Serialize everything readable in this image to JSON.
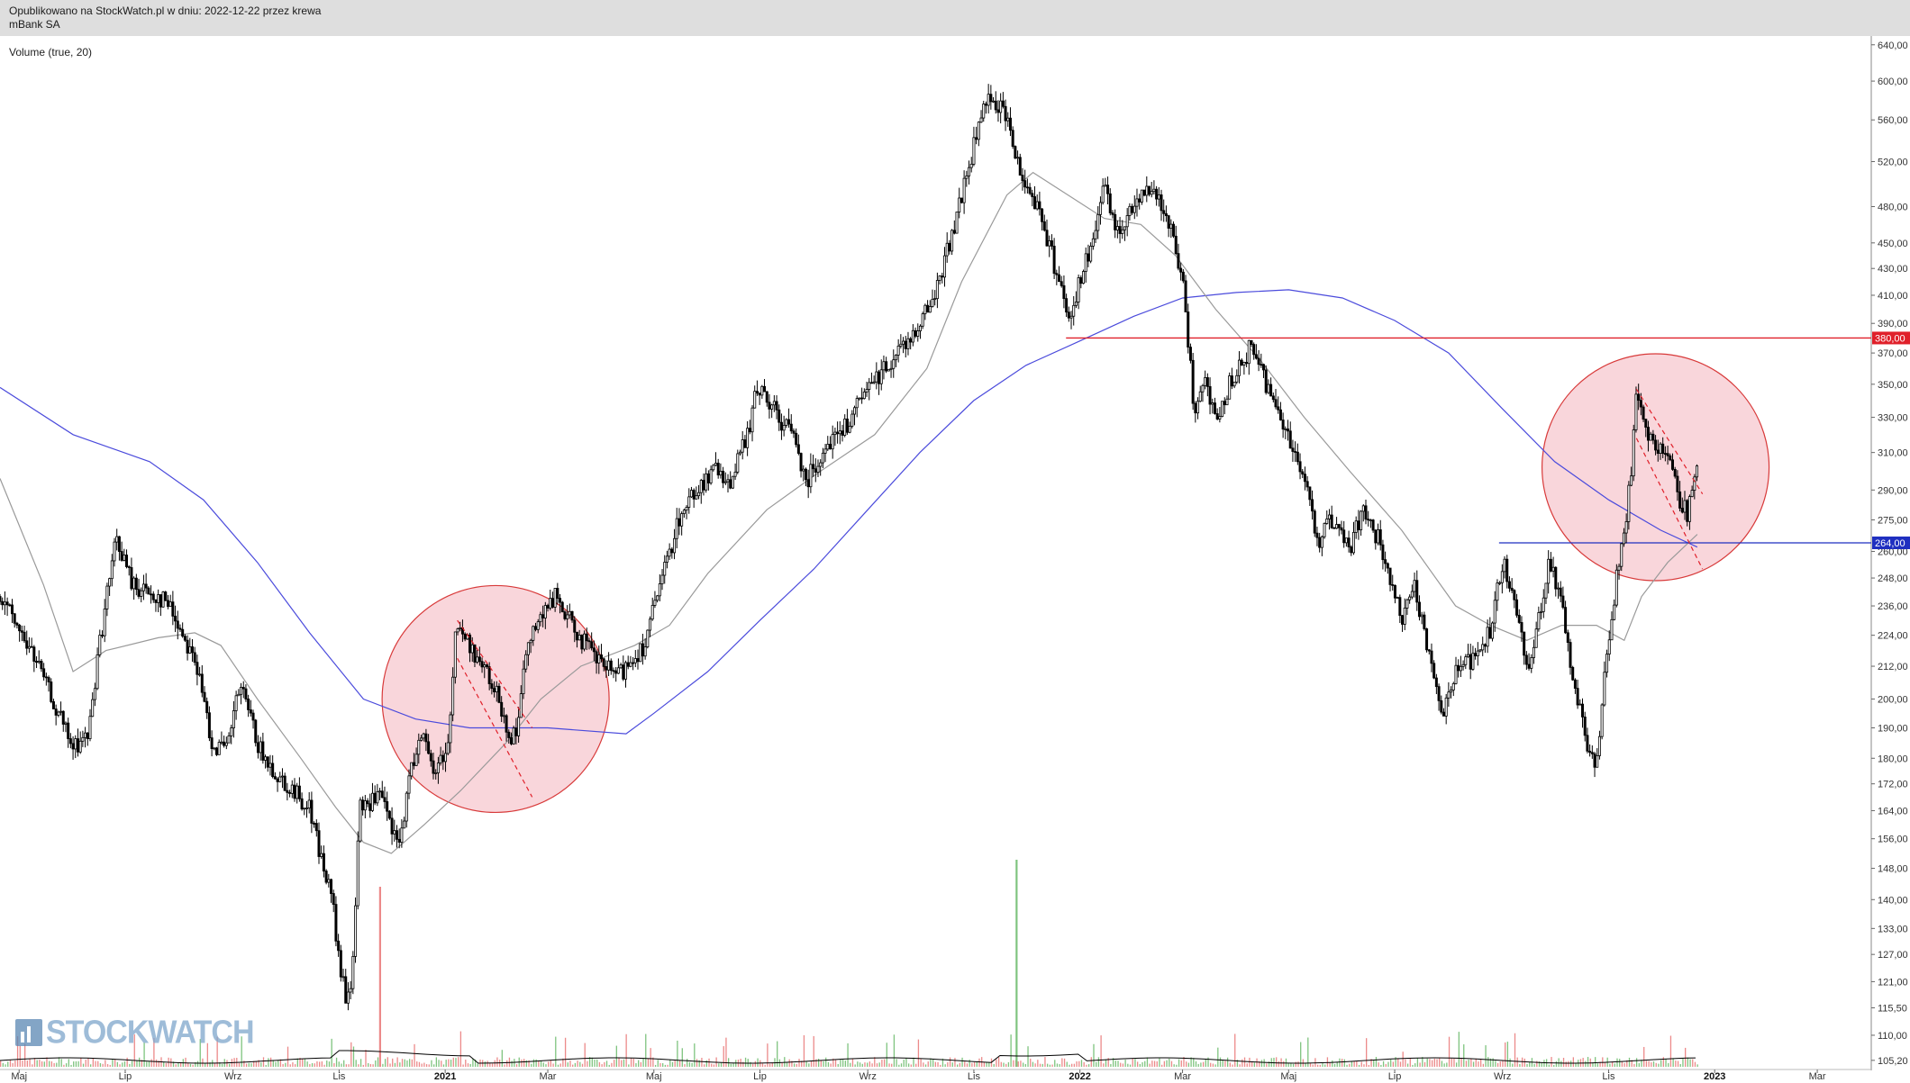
{
  "header": {
    "line1": "Opublikowano na StockWatch.pl w dniu: 2022-12-22 przez krewa",
    "line2": "mBank SA"
  },
  "indicator_label": "Volume (true, 20)",
  "logo_text": "STOCKWATCH",
  "colors": {
    "header_bg": "#dedede",
    "candle": "#000000",
    "ma_short": "#9a9a9a",
    "ma_long": "#4b4bdc",
    "resistance": "#e0202a",
    "support": "#1f2fc0",
    "circle_fill": "#f7c4cc",
    "circle_stroke": "#d83a3a",
    "volume_up": "#7fc47f",
    "volume_down": "#ec8a8a"
  },
  "chart_data": {
    "type": "candlestick",
    "title": "mBank SA",
    "x_range": [
      "2020-04-20",
      "2023-03-31"
    ],
    "y_scale": "log",
    "y_range": [
      104,
      648
    ],
    "y_ticks": [
      "640,00",
      "600,00",
      "560,00",
      "520,00",
      "480,00",
      "450,00",
      "430,00",
      "410,00",
      "390,00",
      "370,00",
      "350,00",
      "330,00",
      "310,00",
      "290,00",
      "275,00",
      "260,00",
      "248,00",
      "236,00",
      "224,00",
      "212,00",
      "200,00",
      "190,00",
      "180,00",
      "172,00",
      "164,00",
      "156,00",
      "148,00",
      "140,00",
      "133,00",
      "127,00",
      "121,00",
      "115,50",
      "110,00",
      "105,20"
    ],
    "x_ticks": [
      {
        "label": "Maj",
        "date": "2020-05-01",
        "year": false
      },
      {
        "label": "Lip",
        "date": "2020-07-01",
        "year": false
      },
      {
        "label": "Wrz",
        "date": "2020-09-01",
        "year": false
      },
      {
        "label": "Lis",
        "date": "2020-11-01",
        "year": false
      },
      {
        "label": "2021",
        "date": "2021-01-01",
        "year": true
      },
      {
        "label": "Mar",
        "date": "2021-03-01",
        "year": false
      },
      {
        "label": "Maj",
        "date": "2021-05-01",
        "year": false
      },
      {
        "label": "Lip",
        "date": "2021-07-01",
        "year": false
      },
      {
        "label": "Wrz",
        "date": "2021-09-01",
        "year": false
      },
      {
        "label": "Lis",
        "date": "2021-11-01",
        "year": false
      },
      {
        "label": "2022",
        "date": "2022-01-01",
        "year": true
      },
      {
        "label": "Mar",
        "date": "2022-03-01",
        "year": false
      },
      {
        "label": "Maj",
        "date": "2022-05-01",
        "year": false
      },
      {
        "label": "Lip",
        "date": "2022-07-01",
        "year": false
      },
      {
        "label": "Wrz",
        "date": "2022-09-01",
        "year": false
      },
      {
        "label": "Lis",
        "date": "2022-11-01",
        "year": false
      },
      {
        "label": "2023",
        "date": "2023-01-01",
        "year": true
      },
      {
        "label": "Mar",
        "date": "2023-03-01",
        "year": false
      }
    ],
    "price_path": [
      [
        "2020-04-20",
        240
      ],
      [
        "2020-05-10",
        215
      ],
      [
        "2020-06-01",
        183
      ],
      [
        "2020-06-10",
        188
      ],
      [
        "2020-06-15",
        215
      ],
      [
        "2020-06-22",
        248
      ],
      [
        "2020-06-26",
        266
      ],
      [
        "2020-07-05",
        245
      ],
      [
        "2020-07-25",
        238
      ],
      [
        "2020-08-10",
        215
      ],
      [
        "2020-08-20",
        185
      ],
      [
        "2020-08-28",
        182
      ],
      [
        "2020-09-05",
        205
      ],
      [
        "2020-09-18",
        180
      ],
      [
        "2020-10-05",
        170
      ],
      [
        "2020-10-15",
        165
      ],
      [
        "2020-10-22",
        150
      ],
      [
        "2020-10-28",
        140
      ],
      [
        "2020-11-01",
        125
      ],
      [
        "2020-11-05",
        117
      ],
      [
        "2020-11-08",
        120
      ],
      [
        "2020-11-13",
        165
      ],
      [
        "2020-11-25",
        168
      ],
      [
        "2020-12-05",
        153
      ],
      [
        "2020-12-12",
        175
      ],
      [
        "2020-12-18",
        190
      ],
      [
        "2020-12-25",
        175
      ],
      [
        "2021-01-03",
        185
      ],
      [
        "2021-01-07",
        228
      ],
      [
        "2021-01-20",
        215
      ],
      [
        "2021-02-01",
        200
      ],
      [
        "2021-02-08",
        186
      ],
      [
        "2021-02-12",
        192
      ],
      [
        "2021-02-18",
        225
      ],
      [
        "2021-02-25",
        230
      ],
      [
        "2021-03-05",
        240
      ],
      [
        "2021-03-15",
        228
      ],
      [
        "2021-03-28",
        215
      ],
      [
        "2021-04-10",
        208
      ],
      [
        "2021-04-25",
        220
      ],
      [
        "2021-05-05",
        245
      ],
      [
        "2021-05-15",
        275
      ],
      [
        "2021-05-25",
        290
      ],
      [
        "2021-06-05",
        300
      ],
      [
        "2021-06-15",
        295
      ],
      [
        "2021-06-25",
        325
      ],
      [
        "2021-06-30",
        350
      ],
      [
        "2021-07-05",
        340
      ],
      [
        "2021-07-12",
        330
      ],
      [
        "2021-07-20",
        320
      ],
      [
        "2021-07-28",
        295
      ],
      [
        "2021-08-08",
        315
      ],
      [
        "2021-08-20",
        325
      ],
      [
        "2021-08-28",
        340
      ],
      [
        "2021-09-10",
        360
      ],
      [
        "2021-09-25",
        380
      ],
      [
        "2021-10-08",
        405
      ],
      [
        "2021-10-18",
        450
      ],
      [
        "2021-10-30",
        520
      ],
      [
        "2021-11-05",
        565
      ],
      [
        "2021-11-12",
        585
      ],
      [
        "2021-11-20",
        560
      ],
      [
        "2021-11-28",
        510
      ],
      [
        "2021-12-08",
        480
      ],
      [
        "2021-12-18",
        430
      ],
      [
        "2021-12-26",
        395
      ],
      [
        "2021-12-31",
        415
      ],
      [
        "2022-01-08",
        450
      ],
      [
        "2022-01-15",
        495
      ],
      [
        "2022-01-22",
        460
      ],
      [
        "2022-01-28",
        470
      ],
      [
        "2022-02-05",
        495
      ],
      [
        "2022-02-15",
        490
      ],
      [
        "2022-02-22",
        460
      ],
      [
        "2022-03-01",
        420
      ],
      [
        "2022-03-05",
        370
      ],
      [
        "2022-03-08",
        330
      ],
      [
        "2022-03-12",
        355
      ],
      [
        "2022-03-20",
        330
      ],
      [
        "2022-04-01",
        360
      ],
      [
        "2022-04-10",
        375
      ],
      [
        "2022-04-20",
        345
      ],
      [
        "2022-05-01",
        320
      ],
      [
        "2022-05-10",
        295
      ],
      [
        "2022-05-18",
        265
      ],
      [
        "2022-05-25",
        275
      ],
      [
        "2022-06-05",
        260
      ],
      [
        "2022-06-12",
        280
      ],
      [
        "2022-06-22",
        265
      ],
      [
        "2022-06-30",
        240
      ],
      [
        "2022-07-06",
        230
      ],
      [
        "2022-07-12",
        244
      ],
      [
        "2022-07-20",
        220
      ],
      [
        "2022-07-28",
        195
      ],
      [
        "2022-08-05",
        210
      ],
      [
        "2022-08-15",
        215
      ],
      [
        "2022-08-25",
        225
      ],
      [
        "2022-09-01",
        255
      ],
      [
        "2022-09-08",
        240
      ],
      [
        "2022-09-15",
        210
      ],
      [
        "2022-09-20",
        225
      ],
      [
        "2022-09-28",
        258
      ],
      [
        "2022-10-05",
        235
      ],
      [
        "2022-10-12",
        205
      ],
      [
        "2022-10-20",
        185
      ],
      [
        "2022-10-25",
        178
      ],
      [
        "2022-10-30",
        210
      ],
      [
        "2022-11-05",
        245
      ],
      [
        "2022-11-10",
        270
      ],
      [
        "2022-11-14",
        300
      ],
      [
        "2022-11-17",
        345
      ],
      [
        "2022-11-22",
        325
      ],
      [
        "2022-11-28",
        315
      ],
      [
        "2022-12-05",
        310
      ],
      [
        "2022-12-12",
        285
      ],
      [
        "2022-12-16",
        278
      ],
      [
        "2022-12-19",
        290
      ],
      [
        "2022-12-22",
        300
      ]
    ],
    "ma_short_path": [
      [
        "2020-04-20",
        296
      ],
      [
        "2020-05-15",
        245
      ],
      [
        "2020-06-01",
        210
      ],
      [
        "2020-06-20",
        218
      ],
      [
        "2020-07-20",
        223
      ],
      [
        "2020-08-10",
        225
      ],
      [
        "2020-08-25",
        220
      ],
      [
        "2020-09-15",
        200
      ],
      [
        "2020-10-10",
        180
      ],
      [
        "2020-10-30",
        165
      ],
      [
        "2020-11-15",
        155
      ],
      [
        "2020-12-01",
        152
      ],
      [
        "2020-12-20",
        160
      ],
      [
        "2021-01-10",
        170
      ],
      [
        "2021-02-05",
        185
      ],
      [
        "2021-02-25",
        200
      ],
      [
        "2021-03-20",
        212
      ],
      [
        "2021-04-20",
        220
      ],
      [
        "2021-05-10",
        228
      ],
      [
        "2021-06-01",
        250
      ],
      [
        "2021-07-05",
        280
      ],
      [
        "2021-08-05",
        300
      ],
      [
        "2021-09-05",
        320
      ],
      [
        "2021-10-05",
        360
      ],
      [
        "2021-10-25",
        420
      ],
      [
        "2021-11-20",
        490
      ],
      [
        "2021-12-05",
        510
      ],
      [
        "2021-12-20",
        495
      ],
      [
        "2022-01-15",
        470
      ],
      [
        "2022-02-05",
        465
      ],
      [
        "2022-02-25",
        440
      ],
      [
        "2022-03-20",
        400
      ],
      [
        "2022-04-15",
        365
      ],
      [
        "2022-05-10",
        330
      ],
      [
        "2022-06-05",
        300
      ],
      [
        "2022-07-05",
        270
      ],
      [
        "2022-08-05",
        236
      ],
      [
        "2022-08-25",
        228
      ],
      [
        "2022-09-15",
        222
      ],
      [
        "2022-10-05",
        228
      ],
      [
        "2022-10-25",
        228
      ],
      [
        "2022-11-10",
        222
      ],
      [
        "2022-11-20",
        240
      ],
      [
        "2022-12-05",
        255
      ],
      [
        "2022-12-22",
        268
      ]
    ],
    "ma_long_path": [
      [
        "2020-04-20",
        348
      ],
      [
        "2020-06-01",
        320
      ],
      [
        "2020-07-15",
        305
      ],
      [
        "2020-08-15",
        285
      ],
      [
        "2020-09-15",
        255
      ],
      [
        "2020-10-15",
        225
      ],
      [
        "2020-11-15",
        200
      ],
      [
        "2020-12-15",
        193
      ],
      [
        "2021-01-15",
        190
      ],
      [
        "2021-03-01",
        190
      ],
      [
        "2021-04-15",
        188
      ],
      [
        "2021-05-01",
        195
      ],
      [
        "2021-06-01",
        210
      ],
      [
        "2021-07-01",
        230
      ],
      [
        "2021-08-01",
        252
      ],
      [
        "2021-09-01",
        280
      ],
      [
        "2021-10-01",
        310
      ],
      [
        "2021-11-01",
        340
      ],
      [
        "2021-12-01",
        362
      ],
      [
        "2022-01-01",
        378
      ],
      [
        "2022-02-01",
        395
      ],
      [
        "2022-03-01",
        408
      ],
      [
        "2022-04-01",
        412
      ],
      [
        "2022-05-01",
        414
      ],
      [
        "2022-06-01",
        408
      ],
      [
        "2022-07-01",
        392
      ],
      [
        "2022-08-01",
        370
      ],
      [
        "2022-09-01",
        335
      ],
      [
        "2022-10-01",
        305
      ],
      [
        "2022-11-01",
        285
      ],
      [
        "2022-12-01",
        270
      ],
      [
        "2022-12-22",
        262
      ]
    ],
    "horizontal_levels": [
      {
        "value": 380,
        "label": "380,00",
        "start": "2021-12-24",
        "color": "#e0202a"
      },
      {
        "value": 264,
        "label": "264,00",
        "start": "2022-08-30",
        "color": "#1f2fc0"
      }
    ],
    "highlight_circles": [
      {
        "center_date": "2021-01-30",
        "center_value": 200
      },
      {
        "center_date": "2022-11-28",
        "center_value": 302
      }
    ],
    "trend_channels": [
      {
        "from": [
          "2021-01-08",
          230
        ],
        "to": [
          "2021-02-20",
          190
        ]
      },
      {
        "from": [
          "2021-01-08",
          215
        ],
        "to": [
          "2021-02-20",
          168
        ]
      },
      {
        "from": [
          "2022-11-17",
          347
        ],
        "to": [
          "2022-12-25",
          288
        ]
      },
      {
        "from": [
          "2022-11-17",
          318
        ],
        "to": [
          "2022-12-25",
          252
        ]
      }
    ],
    "volume": {
      "note": "Volume bars at bottom with 20-period average line",
      "spikes": [
        {
          "date": "2020-11-24",
          "relative": 1.0,
          "color": "down"
        },
        {
          "date": "2021-11-25",
          "relative": 1.15,
          "color": "up"
        }
      ]
    }
  }
}
